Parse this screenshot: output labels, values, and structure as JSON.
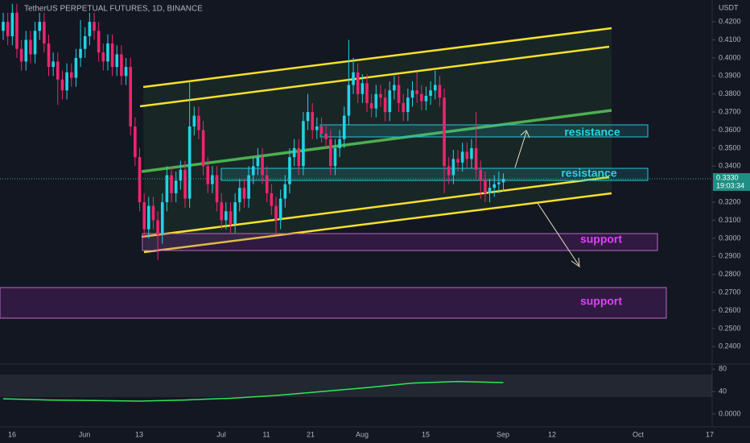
{
  "chart_data": {
    "type": "candlestick",
    "title": "TetherUS PERPETUAL FUTURES, 1D, BINANCE",
    "y_axis_label": "USDT",
    "up_color": "#22d3e6",
    "down_color": "#f0246e",
    "ylim": [
      0.2312,
      0.4321
    ],
    "yticks": [
      {
        "value": 0.42,
        "label": "0.4200"
      },
      {
        "value": 0.41,
        "label": "0.4100"
      },
      {
        "value": 0.4,
        "label": "0.4000"
      },
      {
        "value": 0.39,
        "label": "0.3900"
      },
      {
        "value": 0.38,
        "label": "0.3800"
      },
      {
        "value": 0.37,
        "label": "0.3700"
      },
      {
        "value": 0.36,
        "label": "0.3600"
      },
      {
        "value": 0.35,
        "label": "0.3500"
      },
      {
        "value": 0.34,
        "label": "0.3400"
      },
      {
        "value": 0.32,
        "label": "0.3200"
      },
      {
        "value": 0.31,
        "label": "0.3100"
      },
      {
        "value": 0.3,
        "label": "0.3000"
      },
      {
        "value": 0.29,
        "label": "0.2900"
      },
      {
        "value": 0.28,
        "label": "0.2800"
      },
      {
        "value": 0.27,
        "label": "0.2700"
      },
      {
        "value": 0.26,
        "label": "0.2600"
      },
      {
        "value": 0.25,
        "label": "0.2500"
      },
      {
        "value": 0.24,
        "label": "0.2400"
      }
    ],
    "xticks": [
      "16",
      "Jun",
      "13",
      "Jul",
      "11",
      "21",
      "Aug",
      "15",
      "Sep",
      "12",
      "Oct",
      "17"
    ],
    "last_price": {
      "value": 0.333,
      "label": "0.3330"
    },
    "countdown": "19:03:34",
    "annotations": [
      "resistance",
      "resistance",
      "support",
      "support"
    ],
    "candles": [
      [
        0.415,
        0.425,
        0.41,
        0.42
      ],
      [
        0.42,
        0.425,
        0.407,
        0.412
      ],
      [
        0.412,
        0.43,
        0.407,
        0.425
      ],
      [
        0.425,
        0.43,
        0.4,
        0.405
      ],
      [
        0.405,
        0.41,
        0.393,
        0.398
      ],
      [
        0.398,
        0.415,
        0.393,
        0.41
      ],
      [
        0.41,
        0.415,
        0.397,
        0.402
      ],
      [
        0.402,
        0.42,
        0.397,
        0.415
      ],
      [
        0.415,
        0.425,
        0.41,
        0.42
      ],
      [
        0.42,
        0.425,
        0.403,
        0.408
      ],
      [
        0.408,
        0.413,
        0.39,
        0.395
      ],
      [
        0.395,
        0.403,
        0.39,
        0.398
      ],
      [
        0.398,
        0.403,
        0.374,
        0.388
      ],
      [
        0.388,
        0.393,
        0.377,
        0.382
      ],
      [
        0.382,
        0.397,
        0.377,
        0.392
      ],
      [
        0.392,
        0.397,
        0.384,
        0.389
      ],
      [
        0.389,
        0.405,
        0.384,
        0.4
      ],
      [
        0.4,
        0.421,
        0.395,
        0.405
      ],
      [
        0.405,
        0.417,
        0.4,
        0.412
      ],
      [
        0.412,
        0.425,
        0.407,
        0.42
      ],
      [
        0.42,
        0.425,
        0.41,
        0.415
      ],
      [
        0.415,
        0.42,
        0.398,
        0.403
      ],
      [
        0.403,
        0.408,
        0.393,
        0.398
      ],
      [
        0.398,
        0.413,
        0.393,
        0.408
      ],
      [
        0.408,
        0.413,
        0.39,
        0.395
      ],
      [
        0.395,
        0.407,
        0.39,
        0.402
      ],
      [
        0.402,
        0.407,
        0.385,
        0.39
      ],
      [
        0.39,
        0.4,
        0.385,
        0.395
      ],
      [
        0.395,
        0.4,
        0.357,
        0.362
      ],
      [
        0.362,
        0.367,
        0.34,
        0.345
      ],
      [
        0.345,
        0.35,
        0.315,
        0.32
      ],
      [
        0.32,
        0.325,
        0.3,
        0.305
      ],
      [
        0.305,
        0.323,
        0.3,
        0.318
      ],
      [
        0.318,
        0.323,
        0.305,
        0.31
      ],
      [
        0.31,
        0.315,
        0.288,
        0.302
      ],
      [
        0.302,
        0.325,
        0.297,
        0.32
      ],
      [
        0.32,
        0.34,
        0.315,
        0.335
      ],
      [
        0.335,
        0.34,
        0.32,
        0.325
      ],
      [
        0.325,
        0.337,
        0.32,
        0.332
      ],
      [
        0.332,
        0.343,
        0.327,
        0.338
      ],
      [
        0.338,
        0.343,
        0.317,
        0.322
      ],
      [
        0.322,
        0.387,
        0.317,
        0.362
      ],
      [
        0.362,
        0.373,
        0.357,
        0.368
      ],
      [
        0.368,
        0.373,
        0.355,
        0.36
      ],
      [
        0.36,
        0.365,
        0.335,
        0.34
      ],
      [
        0.34,
        0.345,
        0.325,
        0.33
      ],
      [
        0.33,
        0.34,
        0.325,
        0.335
      ],
      [
        0.335,
        0.34,
        0.315,
        0.32
      ],
      [
        0.32,
        0.325,
        0.305,
        0.31
      ],
      [
        0.31,
        0.32,
        0.305,
        0.315
      ],
      [
        0.315,
        0.32,
        0.303,
        0.308
      ],
      [
        0.308,
        0.325,
        0.303,
        0.32
      ],
      [
        0.32,
        0.333,
        0.315,
        0.328
      ],
      [
        0.328,
        0.333,
        0.317,
        0.322
      ],
      [
        0.322,
        0.34,
        0.317,
        0.335
      ],
      [
        0.335,
        0.345,
        0.33,
        0.34
      ],
      [
        0.34,
        0.35,
        0.335,
        0.345
      ],
      [
        0.345,
        0.35,
        0.33,
        0.335
      ],
      [
        0.335,
        0.34,
        0.32,
        0.325
      ],
      [
        0.325,
        0.33,
        0.313,
        0.318
      ],
      [
        0.318,
        0.323,
        0.302,
        0.31
      ],
      [
        0.31,
        0.327,
        0.305,
        0.322
      ],
      [
        0.322,
        0.335,
        0.317,
        0.33
      ],
      [
        0.33,
        0.35,
        0.325,
        0.345
      ],
      [
        0.345,
        0.355,
        0.34,
        0.35
      ],
      [
        0.35,
        0.355,
        0.335,
        0.34
      ],
      [
        0.34,
        0.37,
        0.335,
        0.365
      ],
      [
        0.365,
        0.38,
        0.36,
        0.37
      ],
      [
        0.37,
        0.375,
        0.355,
        0.36
      ],
      [
        0.36,
        0.367,
        0.355,
        0.362
      ],
      [
        0.362,
        0.367,
        0.353,
        0.358
      ],
      [
        0.358,
        0.363,
        0.35,
        0.355
      ],
      [
        0.355,
        0.36,
        0.335,
        0.34
      ],
      [
        0.34,
        0.355,
        0.335,
        0.35
      ],
      [
        0.35,
        0.36,
        0.345,
        0.355
      ],
      [
        0.355,
        0.373,
        0.35,
        0.368
      ],
      [
        0.368,
        0.41,
        0.363,
        0.385
      ],
      [
        0.385,
        0.4,
        0.38,
        0.392
      ],
      [
        0.392,
        0.397,
        0.375,
        0.38
      ],
      [
        0.38,
        0.391,
        0.375,
        0.386
      ],
      [
        0.386,
        0.391,
        0.37,
        0.375
      ],
      [
        0.375,
        0.38,
        0.367,
        0.372
      ],
      [
        0.372,
        0.385,
        0.367,
        0.38
      ],
      [
        0.38,
        0.385,
        0.373,
        0.378
      ],
      [
        0.378,
        0.383,
        0.365,
        0.37
      ],
      [
        0.37,
        0.387,
        0.365,
        0.382
      ],
      [
        0.382,
        0.39,
        0.377,
        0.385
      ],
      [
        0.385,
        0.39,
        0.37,
        0.375
      ],
      [
        0.375,
        0.38,
        0.365,
        0.37
      ],
      [
        0.37,
        0.383,
        0.365,
        0.378
      ],
      [
        0.378,
        0.387,
        0.373,
        0.382
      ],
      [
        0.382,
        0.392,
        0.375,
        0.38
      ],
      [
        0.38,
        0.385,
        0.371,
        0.376
      ],
      [
        0.376,
        0.384,
        0.371,
        0.379
      ],
      [
        0.379,
        0.387,
        0.374,
        0.382
      ],
      [
        0.382,
        0.393,
        0.377,
        0.385
      ],
      [
        0.385,
        0.39,
        0.373,
        0.378
      ],
      [
        0.378,
        0.383,
        0.325,
        0.34
      ],
      [
        0.34,
        0.345,
        0.33,
        0.335
      ],
      [
        0.335,
        0.349,
        0.33,
        0.344
      ],
      [
        0.344,
        0.349,
        0.337,
        0.342
      ],
      [
        0.342,
        0.353,
        0.337,
        0.348
      ],
      [
        0.348,
        0.353,
        0.339,
        0.344
      ],
      [
        0.344,
        0.355,
        0.339,
        0.35
      ],
      [
        0.35,
        0.37,
        0.333,
        0.338
      ],
      [
        0.338,
        0.343,
        0.322,
        0.332
      ],
      [
        0.332,
        0.337,
        0.32,
        0.325
      ],
      [
        0.325,
        0.333,
        0.32,
        0.328
      ],
      [
        0.328,
        0.335,
        0.323,
        0.33
      ],
      [
        0.33,
        0.337,
        0.325,
        0.331
      ],
      [
        0.331,
        0.336,
        0.326,
        0.333
      ]
    ],
    "indicator": {
      "color": "#2ee65a",
      "y2lim": [
        -23,
        89
      ],
      "y2ticks": [
        80,
        40,
        {
          "value": 0,
          "label": "0.0000"
        }
      ],
      "values": [
        27,
        25,
        24,
        23,
        25,
        28,
        33,
        40,
        47,
        55,
        58,
        56
      ]
    }
  }
}
